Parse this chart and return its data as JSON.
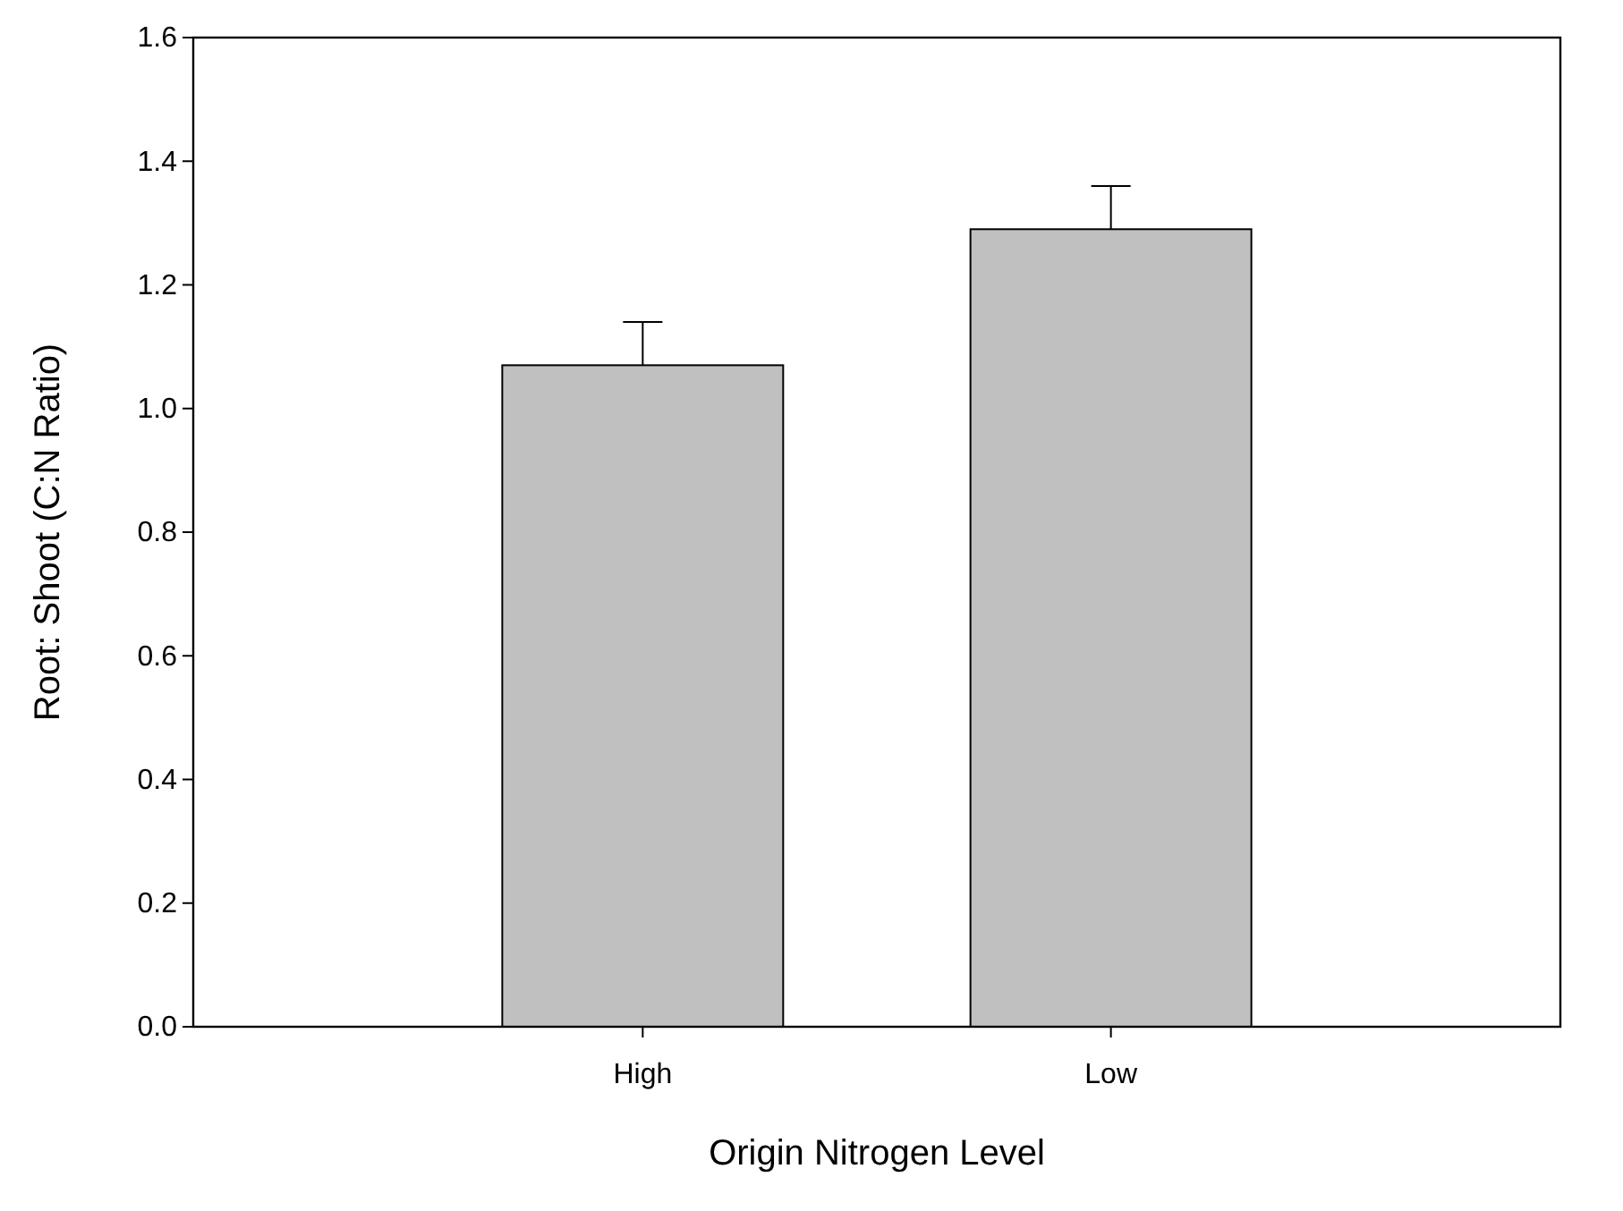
{
  "chart_data": {
    "type": "bar",
    "xlabel": "Origin Nitrogen Level",
    "ylabel": "Root: Shoot (C:N Ratio)",
    "categories": [
      "High",
      "Low"
    ],
    "values": [
      1.07,
      1.29
    ],
    "errors": [
      [
        1.07,
        1.14
      ],
      [
        1.29,
        1.36
      ]
    ],
    "color": "#c0c0c0",
    "ylim": [
      0,
      1.6
    ],
    "yticks": [
      {
        "value": 0,
        "label": "0.0"
      },
      {
        "value": 0.2,
        "label": "0.2"
      },
      {
        "value": 0.4,
        "label": "0.4"
      },
      {
        "value": 0.6,
        "label": "0.6"
      },
      {
        "value": 0.8,
        "label": "0.8"
      },
      {
        "value": 1,
        "label": "1.0"
      },
      {
        "value": 1.2,
        "label": "1.2"
      },
      {
        "value": 1.4,
        "label": "1.4"
      },
      {
        "value": 1.6,
        "label": "1.6"
      }
    ],
    "grid": false
  }
}
